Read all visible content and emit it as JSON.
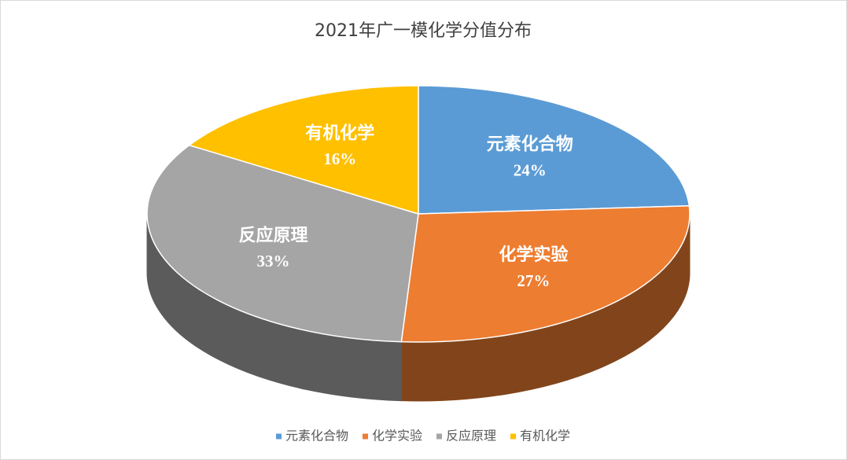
{
  "chart_data": {
    "type": "pie",
    "title": "2021年广一模化学分值分布",
    "categories": [
      "元素化合物",
      "化学实验",
      "反应原理",
      "有机化学"
    ],
    "values": [
      24,
      27,
      33,
      16
    ],
    "value_labels": [
      "24%",
      "27%",
      "33%",
      "16%"
    ],
    "colors": [
      "#5b9bd5",
      "#ed7d31",
      "#a5a5a5",
      "#ffc000"
    ],
    "legend": "bottom"
  }
}
